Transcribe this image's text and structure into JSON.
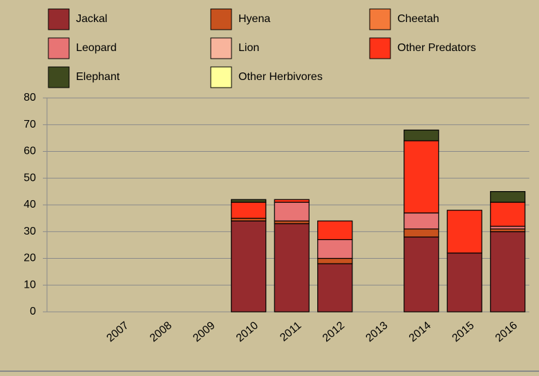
{
  "chart_data": {
    "type": "stacked-bar",
    "categories": [
      "2007",
      "2008",
      "2009",
      "2010",
      "2011",
      "2012",
      "2013",
      "2014",
      "2015",
      "2016"
    ],
    "series": [
      {
        "name": "Jackal",
        "color": "#962b2e",
        "values": [
          0,
          0,
          0,
          34,
          33,
          18,
          0,
          28,
          22,
          30
        ]
      },
      {
        "name": "Hyena",
        "color": "#c8521e",
        "values": [
          0,
          0,
          0,
          1,
          1,
          2,
          0,
          3,
          0,
          1
        ]
      },
      {
        "name": "Cheetah",
        "color": "#f47a3a",
        "values": [
          0,
          0,
          0,
          0,
          0,
          0,
          0,
          0,
          0,
          0
        ]
      },
      {
        "name": "Leopard",
        "color": "#e87474",
        "values": [
          0,
          0,
          0,
          0,
          7,
          7,
          0,
          6,
          0,
          1
        ]
      },
      {
        "name": "Lion",
        "color": "#f8b49c",
        "values": [
          0,
          0,
          0,
          0,
          0,
          0,
          0,
          0,
          0,
          0
        ]
      },
      {
        "name": "Other Predators",
        "color": "#ff3318",
        "values": [
          0,
          0,
          0,
          6,
          1,
          7,
          0,
          27,
          16,
          9
        ]
      },
      {
        "name": "Elephant",
        "color": "#3f4a1e",
        "values": [
          0,
          0,
          0,
          1,
          0,
          0,
          0,
          4,
          0,
          4
        ]
      },
      {
        "name": "Other Herbivores",
        "color": "#ffff99",
        "values": [
          0,
          0,
          0,
          0,
          0,
          0,
          0,
          0,
          0,
          0
        ]
      }
    ],
    "ylim": [
      0,
      80
    ],
    "yticks": [
      0,
      10,
      20,
      30,
      40,
      50,
      60,
      70,
      80
    ],
    "grid": true
  }
}
